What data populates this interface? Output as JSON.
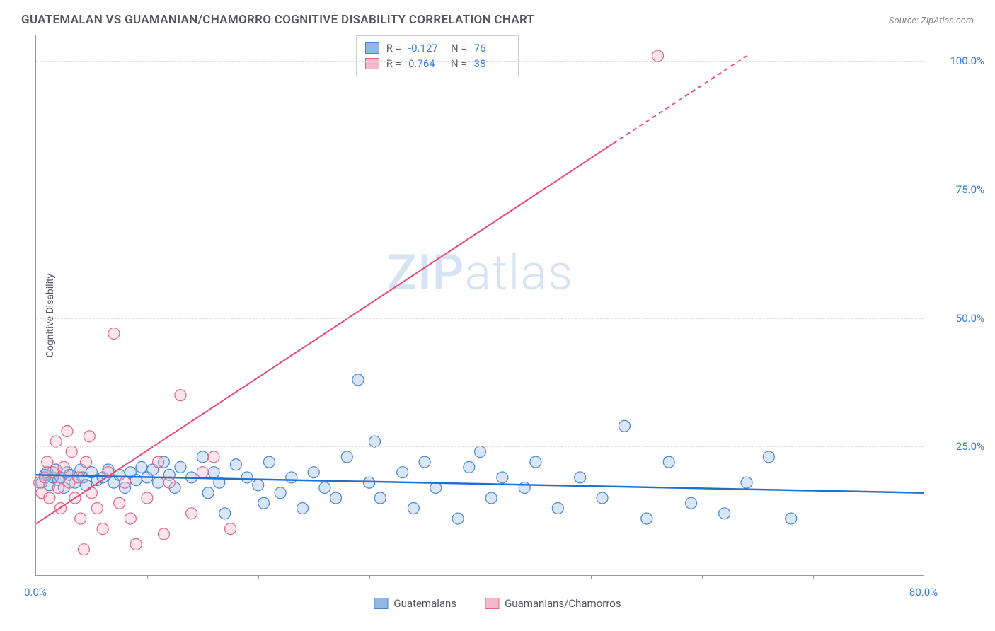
{
  "title": "GUATEMALAN VS GUAMANIAN/CHAMORRO COGNITIVE DISABILITY CORRELATION CHART",
  "source": "Source: ZipAtlas.com",
  "ylabel": "Cognitive Disability",
  "watermark_bold": "ZIP",
  "watermark_light": "atlas",
  "chart": {
    "type": "scatter",
    "xlim": [
      0,
      80
    ],
    "ylim": [
      0,
      105
    ],
    "xtick_labels": [
      "0.0%",
      "80.0%"
    ],
    "xtick_positions_pct": [
      0,
      100
    ],
    "minor_xtick_positions_pct": [
      12.5,
      25,
      37.5,
      50,
      62.5,
      75,
      87.5
    ],
    "yticks": [
      {
        "value": 25,
        "label": "25.0%"
      },
      {
        "value": 50,
        "label": "50.0%"
      },
      {
        "value": 75,
        "label": "75.0%"
      },
      {
        "value": 100,
        "label": "100.0%"
      }
    ],
    "background_color": "#ffffff",
    "grid_color": "#dddddd",
    "axis_color": "#999999",
    "tick_label_color": "#3b7dd8",
    "marker_radius": 8,
    "marker_stroke_width": 1.2,
    "marker_fill_opacity": 0.35,
    "series": [
      {
        "name": "Guatemalans",
        "fill_color": "#8fb7e8",
        "stroke_color": "#4a86d0",
        "line_color": "#1f71d0",
        "line_width": 2.5,
        "trend": {
          "x1": 0,
          "y1": 19.5,
          "x2": 80,
          "y2": 16.0,
          "dashed": false
        },
        "R": "-0.127",
        "N": "76",
        "points": [
          [
            0.5,
            18
          ],
          [
            0.8,
            19.5
          ],
          [
            1,
            20
          ],
          [
            1.2,
            17.5
          ],
          [
            1.5,
            19
          ],
          [
            1.8,
            20.5
          ],
          [
            2,
            18.5
          ],
          [
            2.2,
            19
          ],
          [
            2.5,
            17
          ],
          [
            2.8,
            20
          ],
          [
            3,
            19.5
          ],
          [
            3.5,
            18
          ],
          [
            4,
            20.5
          ],
          [
            4.2,
            19
          ],
          [
            4.5,
            17.5
          ],
          [
            5,
            20
          ],
          [
            5.5,
            18.5
          ],
          [
            6,
            19
          ],
          [
            6.5,
            20.5
          ],
          [
            7,
            18
          ],
          [
            7.5,
            19.5
          ],
          [
            8,
            17
          ],
          [
            8.5,
            20
          ],
          [
            9,
            18.5
          ],
          [
            9.5,
            21
          ],
          [
            10,
            19
          ],
          [
            10.5,
            20.5
          ],
          [
            11,
            18
          ],
          [
            11.5,
            22
          ],
          [
            12,
            19.5
          ],
          [
            12.5,
            17
          ],
          [
            13,
            21
          ],
          [
            14,
            19
          ],
          [
            15,
            23
          ],
          [
            15.5,
            16
          ],
          [
            16,
            20
          ],
          [
            16.5,
            18
          ],
          [
            17,
            12
          ],
          [
            18,
            21.5
          ],
          [
            19,
            19
          ],
          [
            20,
            17.5
          ],
          [
            20.5,
            14
          ],
          [
            21,
            22
          ],
          [
            22,
            16
          ],
          [
            23,
            19
          ],
          [
            24,
            13
          ],
          [
            25,
            20
          ],
          [
            26,
            17
          ],
          [
            27,
            15
          ],
          [
            28,
            23
          ],
          [
            29,
            38
          ],
          [
            30,
            18
          ],
          [
            30.5,
            26
          ],
          [
            31,
            15
          ],
          [
            33,
            20
          ],
          [
            34,
            13
          ],
          [
            35,
            22
          ],
          [
            36,
            17
          ],
          [
            38,
            11
          ],
          [
            39,
            21
          ],
          [
            40,
            24
          ],
          [
            41,
            15
          ],
          [
            42,
            19
          ],
          [
            44,
            17
          ],
          [
            45,
            22
          ],
          [
            47,
            13
          ],
          [
            49,
            19
          ],
          [
            51,
            15
          ],
          [
            53,
            29
          ],
          [
            55,
            11
          ],
          [
            57,
            22
          ],
          [
            59,
            14
          ],
          [
            62,
            12
          ],
          [
            64,
            18
          ],
          [
            66,
            23
          ],
          [
            68,
            11
          ]
        ]
      },
      {
        "name": "Guamanians/Chamorros",
        "fill_color": "#f5b8c8",
        "stroke_color": "#e26587",
        "line_color": "#e84a7a",
        "line_width": 2,
        "trend": {
          "x1": 0,
          "y1": 10,
          "x2": 52,
          "y2": 84,
          "dash_from_x": 52,
          "x3": 64,
          "y3": 101
        },
        "R": "0.764",
        "N": "38",
        "points": [
          [
            0.3,
            18
          ],
          [
            0.5,
            16
          ],
          [
            0.8,
            19
          ],
          [
            1,
            22
          ],
          [
            1.2,
            15
          ],
          [
            1.5,
            20
          ],
          [
            1.8,
            26
          ],
          [
            2,
            17
          ],
          [
            2.2,
            13
          ],
          [
            2.5,
            21
          ],
          [
            2.8,
            28
          ],
          [
            3,
            18
          ],
          [
            3.2,
            24
          ],
          [
            3.5,
            15
          ],
          [
            3.8,
            19
          ],
          [
            4,
            11
          ],
          [
            4.3,
            5
          ],
          [
            4.5,
            22
          ],
          [
            4.8,
            27
          ],
          [
            5,
            16
          ],
          [
            5.5,
            13
          ],
          [
            6,
            9
          ],
          [
            6.5,
            20
          ],
          [
            7,
            47
          ],
          [
            7.5,
            14
          ],
          [
            8,
            18
          ],
          [
            8.5,
            11
          ],
          [
            9,
            6
          ],
          [
            10,
            15
          ],
          [
            11,
            22
          ],
          [
            11.5,
            8
          ],
          [
            12,
            18
          ],
          [
            13,
            35
          ],
          [
            14,
            12
          ],
          [
            15,
            20
          ],
          [
            16,
            23
          ],
          [
            17.5,
            9
          ],
          [
            56,
            101
          ]
        ]
      }
    ]
  },
  "stats_labels": {
    "R": "R =",
    "N": "N ="
  },
  "bottom_legend": [
    "Guatemalans",
    "Guamanians/Chamorros"
  ]
}
